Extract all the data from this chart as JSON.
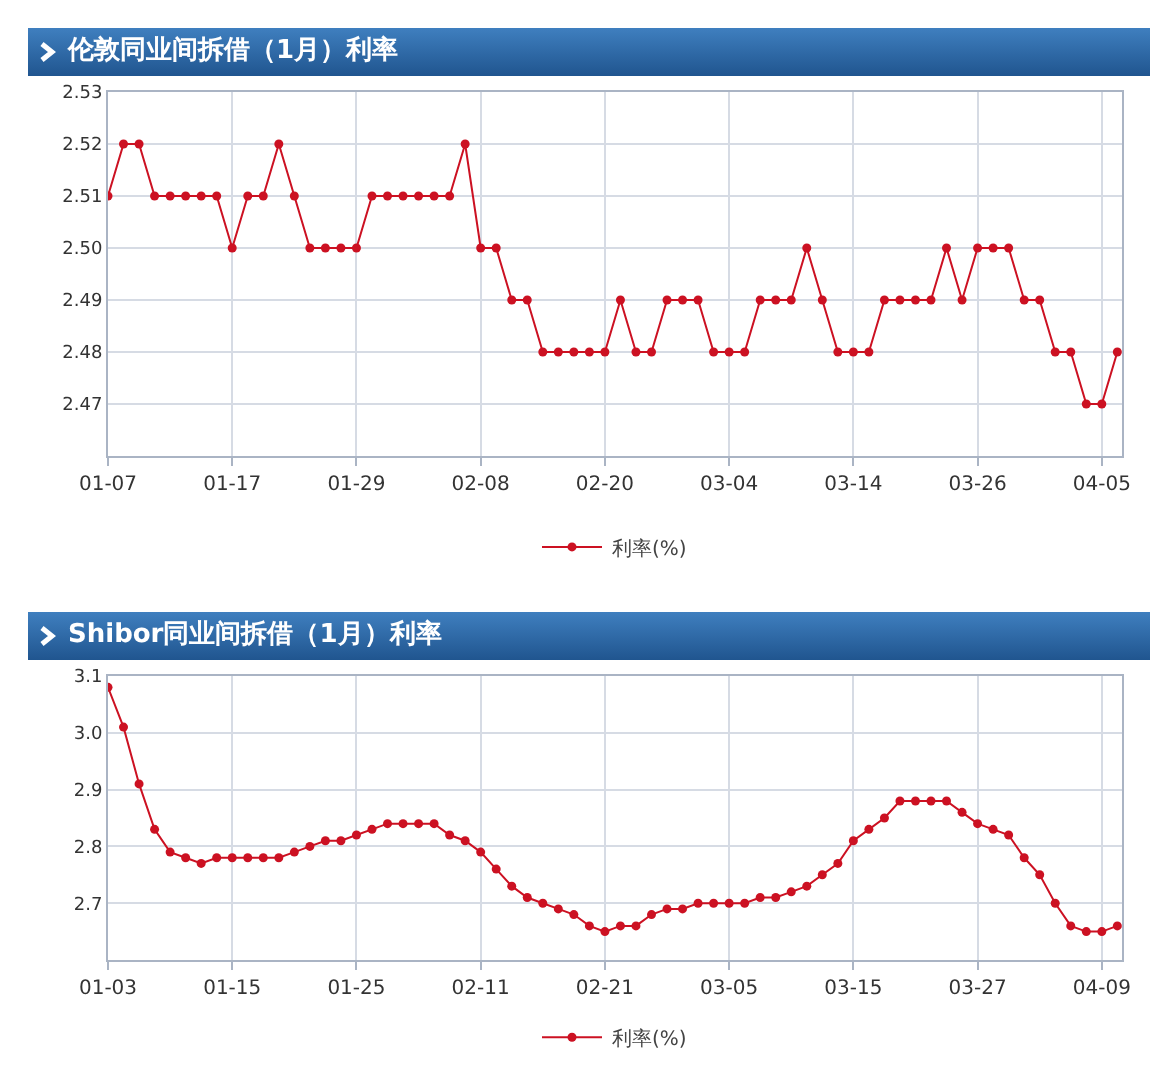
{
  "chart_data": [
    {
      "type": "line",
      "title": "伦敦同业间拆借（1月）利率",
      "categories": [
        "01-07",
        null,
        null,
        null,
        null,
        null,
        null,
        null,
        "01-17",
        null,
        null,
        null,
        null,
        null,
        null,
        null,
        "01-29",
        null,
        null,
        null,
        null,
        null,
        null,
        null,
        "02-08",
        null,
        null,
        null,
        null,
        null,
        null,
        null,
        "02-20",
        null,
        null,
        null,
        null,
        null,
        null,
        null,
        "03-04",
        null,
        null,
        null,
        null,
        null,
        null,
        null,
        "03-14",
        null,
        null,
        null,
        null,
        null,
        null,
        null,
        "03-26",
        null,
        null,
        null,
        null,
        null,
        null,
        null,
        "04-05",
        null
      ],
      "series": [
        {
          "name": "利率(%)",
          "color": "#cc1122",
          "values": [
            2.51,
            2.52,
            2.52,
            2.51,
            2.51,
            2.51,
            2.51,
            2.51,
            2.5,
            2.51,
            2.51,
            2.52,
            2.51,
            2.5,
            2.5,
            2.5,
            2.5,
            2.51,
            2.51,
            2.51,
            2.51,
            2.51,
            2.51,
            2.52,
            2.5,
            2.5,
            2.49,
            2.49,
            2.48,
            2.48,
            2.48,
            2.48,
            2.48,
            2.49,
            2.48,
            2.48,
            2.49,
            2.49,
            2.49,
            2.48,
            2.48,
            2.48,
            2.49,
            2.49,
            2.49,
            2.5,
            2.49,
            2.48,
            2.48,
            2.48,
            2.49,
            2.49,
            2.49,
            2.49,
            2.5,
            2.49,
            2.5,
            2.5,
            2.5,
            2.49,
            2.49,
            2.48,
            2.48,
            2.47,
            2.47,
            2.48
          ]
        }
      ],
      "ylim": [
        2.46,
        2.53
      ],
      "yticks": [
        2.47,
        2.48,
        2.49,
        "2.50",
        2.51,
        2.52,
        2.53
      ],
      "grid": true,
      "legend": "bottom",
      "marker": "circle",
      "line_style": "solid"
    },
    {
      "type": "line",
      "title": "Shibor同业间拆借（1月）利率",
      "categories": [
        "01-03",
        null,
        null,
        null,
        null,
        null,
        null,
        null,
        "01-15",
        null,
        null,
        null,
        null,
        null,
        null,
        null,
        "01-25",
        null,
        null,
        null,
        null,
        null,
        null,
        null,
        "02-11",
        null,
        null,
        null,
        null,
        null,
        null,
        null,
        "02-21",
        null,
        null,
        null,
        null,
        null,
        null,
        null,
        "03-05",
        null,
        null,
        null,
        null,
        null,
        null,
        null,
        "03-15",
        null,
        null,
        null,
        null,
        null,
        null,
        null,
        "03-27",
        null,
        null,
        null,
        null,
        null,
        null,
        null,
        "04-09",
        null
      ],
      "series": [
        {
          "name": "利率(%)",
          "color": "#cc1122",
          "values": [
            3.08,
            3.01,
            2.91,
            2.83,
            2.79,
            2.78,
            2.77,
            2.78,
            2.78,
            2.78,
            2.78,
            2.78,
            2.79,
            2.8,
            2.81,
            2.81,
            2.82,
            2.83,
            2.84,
            2.84,
            2.84,
            2.84,
            2.82,
            2.81,
            2.79,
            2.76,
            2.73,
            2.71,
            2.7,
            2.69,
            2.68,
            2.66,
            2.65,
            2.66,
            2.66,
            2.68,
            2.69,
            2.69,
            2.7,
            2.7,
            2.7,
            2.7,
            2.71,
            2.71,
            2.72,
            2.73,
            2.75,
            2.77,
            2.81,
            2.83,
            2.85,
            2.88,
            2.88,
            2.88,
            2.88,
            2.86,
            2.84,
            2.83,
            2.82,
            2.78,
            2.75,
            2.7,
            2.66,
            2.65,
            2.65,
            2.66
          ]
        }
      ],
      "ylim": [
        2.6,
        3.1
      ],
      "yticks": [
        2.7,
        2.8,
        2.9,
        {
          "value": 3.0,
          "label": "3.0"
        },
        3.1
      ],
      "grid": true,
      "legend": "bottom",
      "marker": "circle",
      "line_style": "solid"
    }
  ]
}
